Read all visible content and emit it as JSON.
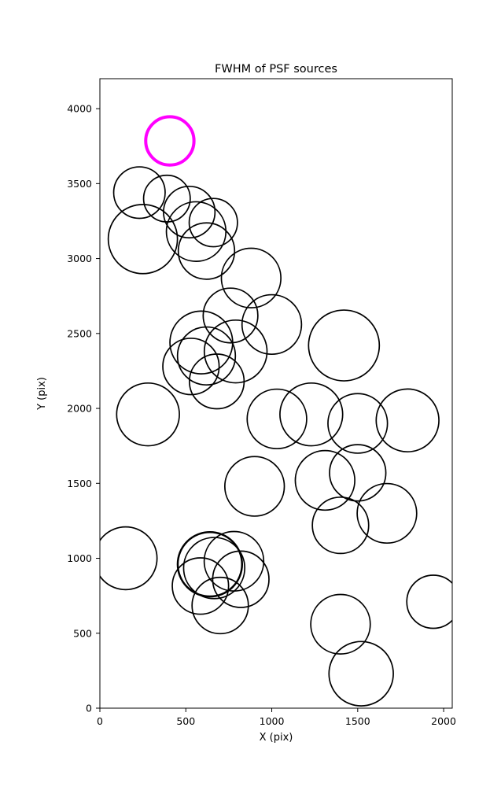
{
  "figure": {
    "title": "FWHM of PSF sources",
    "xlabel": "X (pix)",
    "ylabel": "Y (pix)",
    "background_color": "#ffffff",
    "frame_color": "#000000"
  },
  "chart_data": {
    "type": "scatter",
    "title": "FWHM of PSF sources",
    "xlabel": "X (pix)",
    "ylabel": "Y (pix)",
    "xlim": [
      0,
      2050
    ],
    "ylim": [
      0,
      4200
    ],
    "xticks": [
      0,
      500,
      1000,
      1500,
      2000
    ],
    "yticks": [
      0,
      500,
      1000,
      1500,
      2000,
      2500,
      3000,
      3500,
      4000
    ],
    "grid": false,
    "legend": "none",
    "circle_color": "#000000",
    "circle_linewidth": 1.7,
    "highlight_color": "#ff00ff",
    "circles": [
      {
        "x": 407,
        "y": 3785,
        "r": 150,
        "color": "#ff00ff",
        "lw": 4
      },
      {
        "x": 230,
        "y": 3440,
        "r": 160
      },
      {
        "x": 390,
        "y": 3400,
        "r": 145
      },
      {
        "x": 520,
        "y": 3310,
        "r": 160
      },
      {
        "x": 250,
        "y": 3130,
        "r": 215
      },
      {
        "x": 560,
        "y": 3180,
        "r": 185
      },
      {
        "x": 660,
        "y": 3240,
        "r": 150
      },
      {
        "x": 620,
        "y": 3050,
        "r": 175
      },
      {
        "x": 880,
        "y": 2870,
        "r": 185
      },
      {
        "x": 1000,
        "y": 2560,
        "r": 185
      },
      {
        "x": 760,
        "y": 2620,
        "r": 170
      },
      {
        "x": 590,
        "y": 2440,
        "r": 195
      },
      {
        "x": 790,
        "y": 2380,
        "r": 195
      },
      {
        "x": 620,
        "y": 2350,
        "r": 180
      },
      {
        "x": 1420,
        "y": 2420,
        "r": 220
      },
      {
        "x": 530,
        "y": 2280,
        "r": 175
      },
      {
        "x": 680,
        "y": 2180,
        "r": 170
      },
      {
        "x": 280,
        "y": 1960,
        "r": 195
      },
      {
        "x": 1030,
        "y": 1930,
        "r": 185
      },
      {
        "x": 1230,
        "y": 1960,
        "r": 195
      },
      {
        "x": 1500,
        "y": 1900,
        "r": 185
      },
      {
        "x": 1790,
        "y": 1920,
        "r": 195
      },
      {
        "x": 900,
        "y": 1480,
        "r": 185
      },
      {
        "x": 1310,
        "y": 1520,
        "r": 185
      },
      {
        "x": 1500,
        "y": 1570,
        "r": 175
      },
      {
        "x": 1670,
        "y": 1300,
        "r": 185
      },
      {
        "x": 1400,
        "y": 1220,
        "r": 175
      },
      {
        "x": 150,
        "y": 1000,
        "r": 195
      },
      {
        "x": 640,
        "y": 960,
        "r": 200,
        "lw": 2.5
      },
      {
        "x": 665,
        "y": 935,
        "r": 190
      },
      {
        "x": 780,
        "y": 980,
        "r": 185
      },
      {
        "x": 820,
        "y": 860,
        "r": 175
      },
      {
        "x": 585,
        "y": 815,
        "r": 175
      },
      {
        "x": 700,
        "y": 685,
        "r": 175
      },
      {
        "x": 1400,
        "y": 560,
        "r": 185
      },
      {
        "x": 1940,
        "y": 710,
        "r": 165
      },
      {
        "x": 1520,
        "y": 230,
        "r": 200
      }
    ]
  }
}
